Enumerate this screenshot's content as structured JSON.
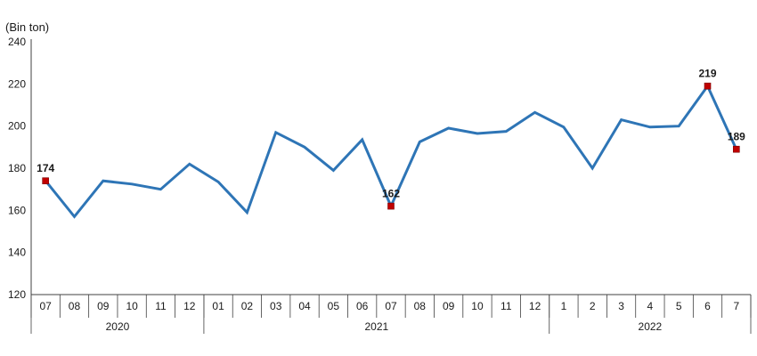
{
  "chart_data": {
    "type": "line",
    "unit_label": "(Bin ton)",
    "x": [
      "07",
      "08",
      "09",
      "10",
      "11",
      "12",
      "01",
      "02",
      "03",
      "04",
      "05",
      "06",
      "07",
      "08",
      "09",
      "10",
      "11",
      "12",
      "1",
      "2",
      "3",
      "4",
      "5",
      "6",
      "7"
    ],
    "years": [
      {
        "label": "2020",
        "first_index": 0,
        "last_index": 5
      },
      {
        "label": "2021",
        "first_index": 6,
        "last_index": 17
      },
      {
        "label": "2022",
        "first_index": 18,
        "last_index": 24
      }
    ],
    "series": [
      {
        "values": [
          174,
          157,
          174,
          172.5,
          170,
          182,
          173.5,
          159,
          197,
          190,
          179,
          193.5,
          162,
          192.5,
          199,
          196.5,
          197.5,
          206.5,
          199.5,
          180,
          203,
          199.5,
          200,
          219,
          189
        ]
      }
    ],
    "highlighted_points": [
      {
        "index": 0,
        "label": "174"
      },
      {
        "index": 12,
        "label": "162"
      },
      {
        "index": 23,
        "label": "219"
      },
      {
        "index": 24,
        "label": "189"
      }
    ],
    "ylim": [
      120,
      240
    ],
    "yticks": [
      "120",
      "140",
      "160",
      "180",
      "200",
      "220",
      "240"
    ],
    "grid": false,
    "colors": {
      "line": "#2e75b6",
      "marker": "#c00000",
      "axis": "#404040"
    }
  }
}
